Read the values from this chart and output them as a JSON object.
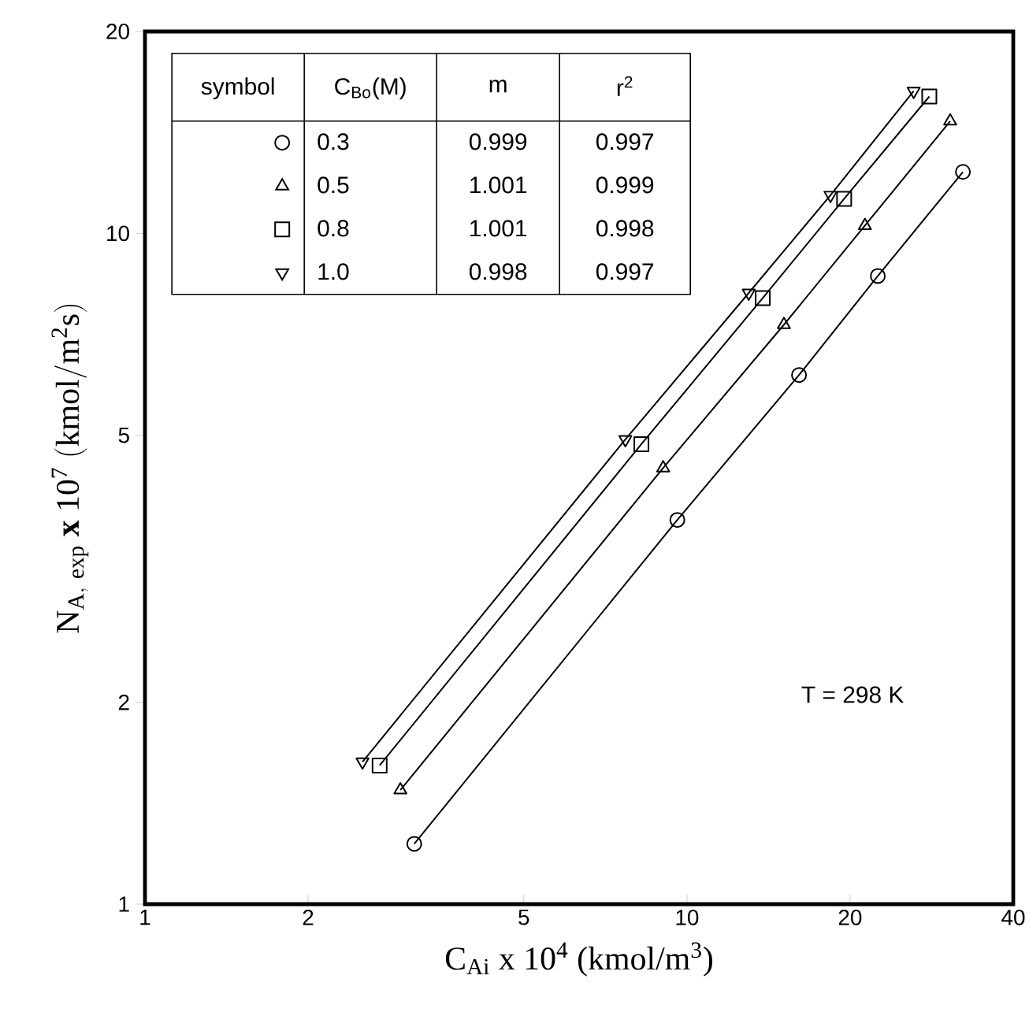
{
  "chart_data": {
    "type": "line",
    "xlabel": "C$_{Ai}$ x 10$^{4}$ (kmol/m$^{3}$)",
    "ylabel": "\\mathrm{N_{A,\\ exp}\\ \\mathbf{x}\\ 10^{7}\\ (kmol/m^{2}s)}",
    "log": "xy",
    "xlim": [
      1,
      40
    ],
    "ylim": [
      1,
      20
    ],
    "xticks": [
      1,
      2,
      5,
      10,
      20,
      40
    ],
    "yticks": [
      1,
      2,
      5,
      10,
      20
    ],
    "legend": "top left",
    "legend_title": "C$_{Bo}$(M)",
    "line_style": "solid",
    "series": [
      {
        "name": "0.3",
        "color": "#000000",
        "marker": "circle",
        "x": [
          3.14,
          9.6,
          16.1,
          22.5,
          32.3
        ],
        "values": [
          1.23,
          3.74,
          6.15,
          8.64,
          12.35
        ]
      },
      {
        "name": "0.5",
        "color": "#000000",
        "marker": "triangle",
        "x": [
          2.96,
          9.04,
          15.1,
          21.3,
          30.6
        ],
        "values": [
          1.48,
          4.47,
          7.31,
          10.27,
          14.7
        ]
      },
      {
        "name": "0.8",
        "color": "#000000",
        "marker": "square",
        "x": [
          2.71,
          8.24,
          13.8,
          19.5,
          28.0
        ],
        "values": [
          1.61,
          4.85,
          8.01,
          11.26,
          16.0
        ]
      },
      {
        "name": "1.0",
        "color": "#000000",
        "marker": "triangle down",
        "x": [
          2.52,
          7.7,
          13.0,
          18.4,
          26.2
        ],
        "values": [
          1.63,
          4.93,
          8.15,
          11.4,
          16.3
        ]
      }
    ],
    "annotations": [
      "symbol",
      "m",
      "r$^{2}$",
      "0.999",
      "0.997",
      "1.001",
      "0.999",
      "1.001",
      "0.998",
      "0.998",
      "0.997",
      "T = 298 K"
    ]
  }
}
